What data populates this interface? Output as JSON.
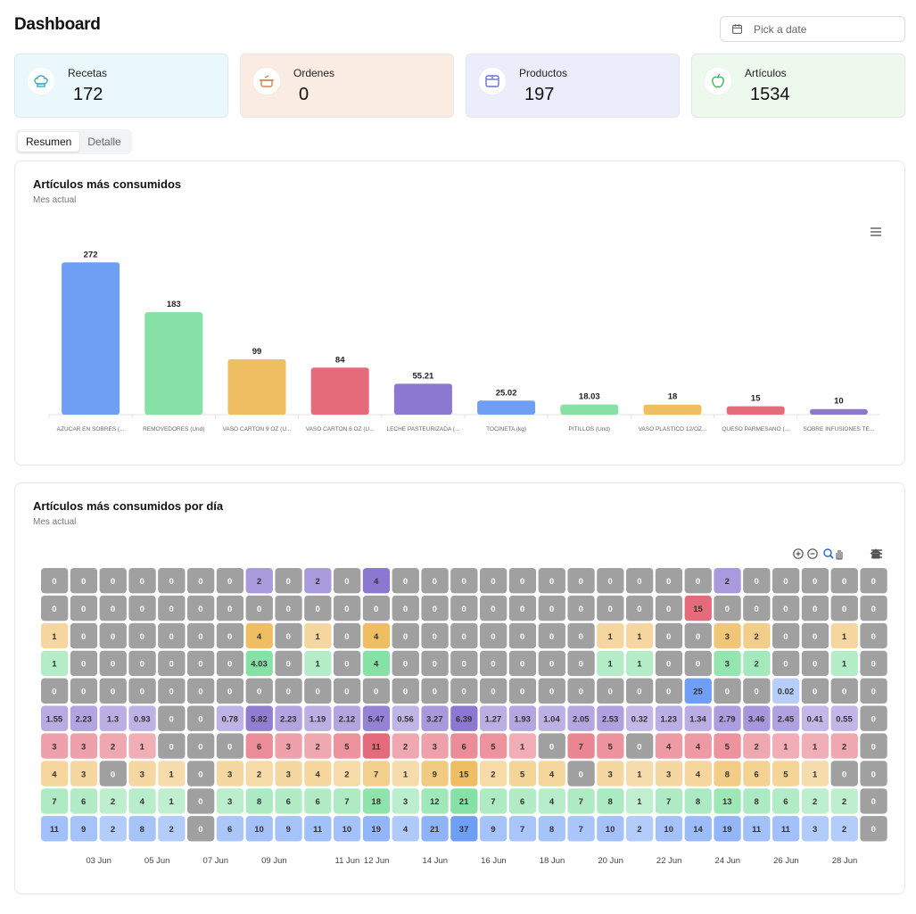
{
  "header": {
    "title": "Dashboard",
    "date_placeholder": "Pick a date"
  },
  "stats": [
    {
      "label": "Recetas",
      "value": "172",
      "icon": "chef-hat-icon",
      "bg": "#eaf7fb",
      "color": "#38a6c9"
    },
    {
      "label": "Ordenes",
      "value": "0",
      "icon": "cooking-pot-icon",
      "bg": "#faece2",
      "color": "#d9804a"
    },
    {
      "label": "Productos",
      "value": "197",
      "icon": "box-icon",
      "bg": "#ecedfb",
      "color": "#6b6fe0"
    },
    {
      "label": "Artículos",
      "value": "1534",
      "icon": "apple-icon",
      "bg": "#ecf9ec",
      "color": "#44b855"
    }
  ],
  "tabs": {
    "resumen": "Resumen",
    "detalle": "Detalle"
  },
  "bar_panel": {
    "title": "Artículos más consumidos",
    "subtitle": "Mes actual"
  },
  "heat_panel": {
    "title": "Artículos más consumidos por día",
    "subtitle": "Mes actual"
  },
  "chart_data": [
    {
      "type": "bar",
      "categories": [
        "AZUCAR EN SOBRES (...",
        "REMOVEDORES (Und)",
        "VASO CARTON 9 OZ (U...",
        "VASO CARTON 6 OZ (U...",
        "LECHE PASTEURIZADA (...",
        "TOCINETA (kg)",
        "PITILLOS (Und)",
        "VASO PLASTICO 12/OZ...",
        "QUESO PARMESANO (...",
        "SOBRE INFUSIONES TE..."
      ],
      "values": [
        272,
        183,
        99,
        84,
        55.21,
        25.02,
        18.03,
        18,
        15,
        10
      ],
      "value_labels": [
        "272",
        "183",
        "99",
        "84",
        "55.21",
        "25.02",
        "18.03",
        "18",
        "15",
        "10"
      ],
      "colors": [
        "#6f9ef5",
        "#86e1a6",
        "#efbe63",
        "#e56b7a",
        "#8c78d1"
      ],
      "ylim": [
        0,
        290
      ]
    },
    {
      "type": "heatmap",
      "x_labels": [
        "03 Jun",
        "05 Jun",
        "07 Jun",
        "09 Jun",
        "11 Jun",
        "12 Jun",
        "14 Jun",
        "16 Jun",
        "18 Jun",
        "20 Jun",
        "22 Jun",
        "24 Jun",
        "26 Jun",
        "28 Jun"
      ],
      "rows": [
        [
          "0",
          "0",
          "0",
          "0",
          "0",
          "0",
          "0",
          "2",
          "0",
          "2",
          "0",
          "4",
          "0",
          "0",
          "0",
          "0",
          "0",
          "0",
          "0",
          "0",
          "0",
          "0",
          "0",
          "2",
          "0",
          "0",
          "0",
          "0",
          "0"
        ],
        [
          "0",
          "0",
          "0",
          "0",
          "0",
          "0",
          "0",
          "0",
          "0",
          "0",
          "0",
          "0",
          "0",
          "0",
          "0",
          "0",
          "0",
          "0",
          "0",
          "0",
          "0",
          "0",
          "15",
          "0",
          "0",
          "0",
          "0",
          "0",
          "0"
        ],
        [
          "1",
          "0",
          "0",
          "0",
          "0",
          "0",
          "0",
          "4",
          "0",
          "1",
          "0",
          "4",
          "0",
          "0",
          "0",
          "0",
          "0",
          "0",
          "0",
          "1",
          "1",
          "0",
          "0",
          "3",
          "2",
          "0",
          "0",
          "1",
          "0"
        ],
        [
          "1",
          "0",
          "0",
          "0",
          "0",
          "0",
          "0",
          "4.03",
          "0",
          "1",
          "0",
          "4",
          "0",
          "0",
          "0",
          "0",
          "0",
          "0",
          "0",
          "1",
          "1",
          "0",
          "0",
          "3",
          "2",
          "0",
          "0",
          "1",
          "0"
        ],
        [
          "0",
          "0",
          "0",
          "0",
          "0",
          "0",
          "0",
          "0",
          "0",
          "0",
          "0",
          "0",
          "0",
          "0",
          "0",
          "0",
          "0",
          "0",
          "0",
          "0",
          "0",
          "0",
          "25",
          "0",
          "0",
          "0.02",
          "0",
          "0",
          "0"
        ],
        [
          "1.55",
          "2.23",
          "1.3",
          "0.93",
          "0",
          "0",
          "0.78",
          "5.82",
          "2.23",
          "1.19",
          "2.12",
          "5.47",
          "0.56",
          "3.27",
          "6.39",
          "1.27",
          "1.93",
          "1.04",
          "2.05",
          "2.53",
          "0.32",
          "1.23",
          "1.34",
          "2.79",
          "3.46",
          "2.45",
          "0.41",
          "0.55",
          "0"
        ],
        [
          "3",
          "3",
          "2",
          "1",
          "0",
          "0",
          "0",
          "6",
          "3",
          "2",
          "5",
          "11",
          "2",
          "3",
          "6",
          "5",
          "1",
          "0",
          "7",
          "5",
          "0",
          "4",
          "4",
          "5",
          "2",
          "1",
          "1",
          "2",
          "0"
        ],
        [
          "4",
          "3",
          "0",
          "3",
          "1",
          "0",
          "3",
          "2",
          "3",
          "4",
          "2",
          "7",
          "1",
          "9",
          "15",
          "2",
          "5",
          "4",
          "0",
          "3",
          "1",
          "3",
          "4",
          "8",
          "6",
          "5",
          "1",
          "0",
          "0"
        ],
        [
          "7",
          "6",
          "2",
          "4",
          "1",
          "0",
          "3",
          "8",
          "6",
          "6",
          "7",
          "18",
          "3",
          "12",
          "21",
          "7",
          "6",
          "4",
          "7",
          "8",
          "1",
          "7",
          "8",
          "13",
          "8",
          "6",
          "2",
          "2",
          "0"
        ],
        [
          "11",
          "9",
          "2",
          "8",
          "2",
          "0",
          "6",
          "10",
          "9",
          "11",
          "10",
          "19",
          "4",
          "21",
          "37",
          "9",
          "7",
          "8",
          "7",
          "10",
          "2",
          "10",
          "14",
          "19",
          "11",
          "11",
          "3",
          "2",
          "0"
        ]
      ],
      "row_colors": [
        "#8c78d1",
        "#e56b7a",
        "#efbe63",
        "#86e1a6",
        "#6f9ef5",
        "#8c78d1",
        "#e56b7a",
        "#efbe63",
        "#86e1a6",
        "#6f9ef5"
      ],
      "zero_color": "#a0a0a0"
    }
  ]
}
